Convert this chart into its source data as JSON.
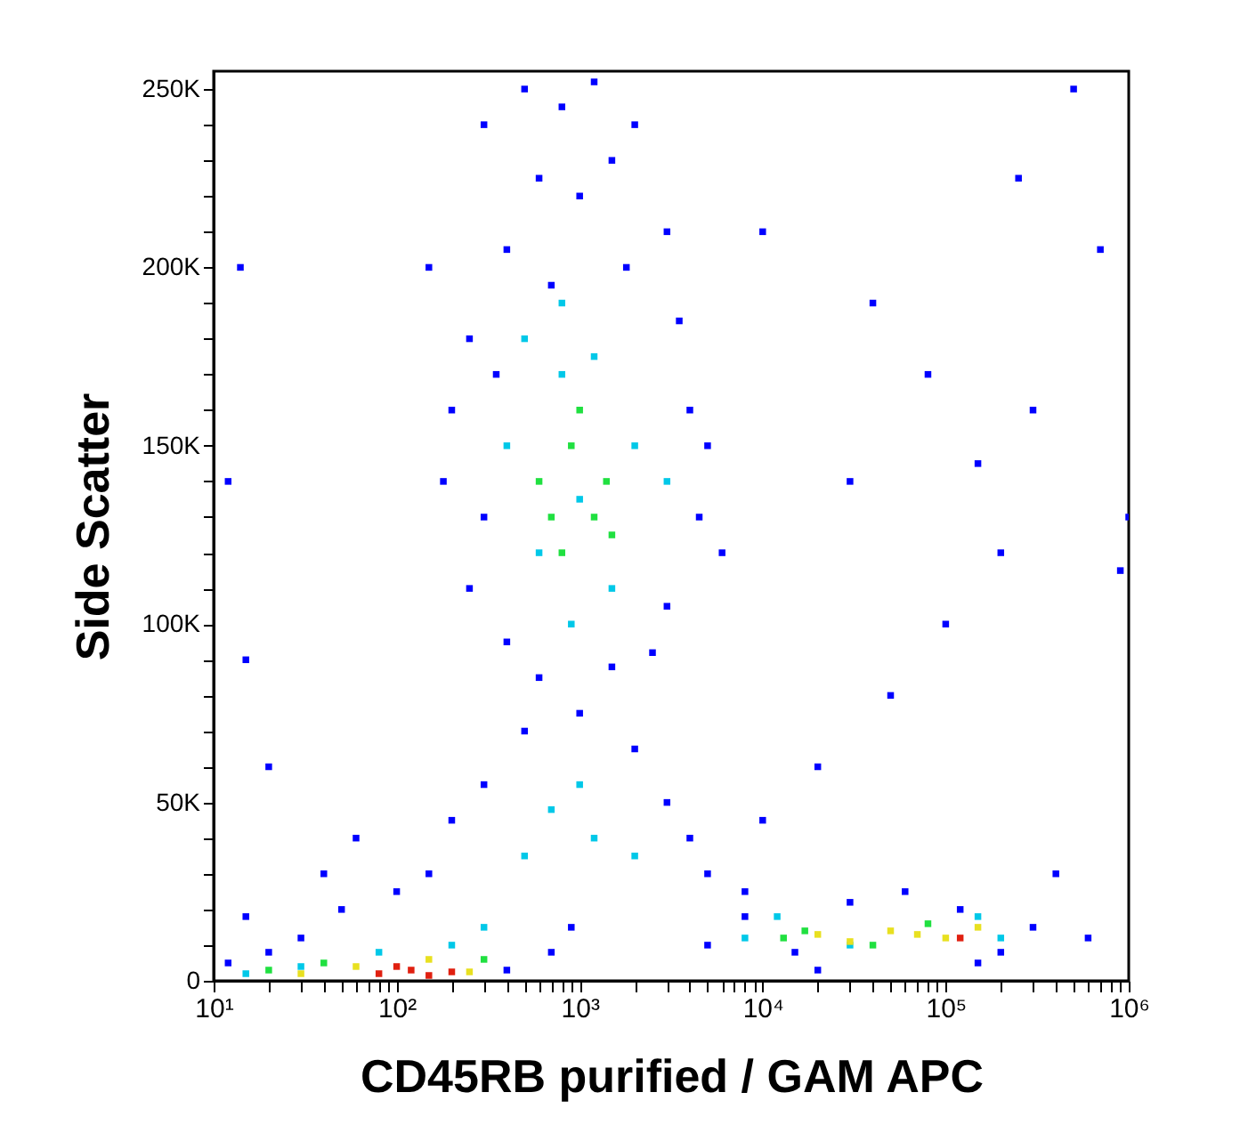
{
  "chart_data": {
    "type": "scatter",
    "xlabel": "CD45RB purified / GAM APC",
    "ylabel": "Side Scatter",
    "log": "x",
    "grid": false,
    "marker": "square",
    "xlim": [
      10,
      1000000
    ],
    "ylim": [
      0,
      255000
    ],
    "xticks": [
      {
        "value": 10,
        "label": "10¹"
      },
      {
        "value": 20,
        "label": null
      },
      {
        "value": 30,
        "label": null
      },
      {
        "value": 40,
        "label": null
      },
      {
        "value": 50,
        "label": null
      },
      {
        "value": 60,
        "label": null
      },
      {
        "value": 70,
        "label": null
      },
      {
        "value": 80,
        "label": null
      },
      {
        "value": 90,
        "label": null
      },
      {
        "value": 100,
        "label": "10²"
      },
      {
        "value": 200,
        "label": null
      },
      {
        "value": 300,
        "label": null
      },
      {
        "value": 400,
        "label": null
      },
      {
        "value": 500,
        "label": null
      },
      {
        "value": 600,
        "label": null
      },
      {
        "value": 700,
        "label": null
      },
      {
        "value": 800,
        "label": null
      },
      {
        "value": 900,
        "label": null
      },
      {
        "value": 1000,
        "label": "10³"
      },
      {
        "value": 2000,
        "label": null
      },
      {
        "value": 3000,
        "label": null
      },
      {
        "value": 4000,
        "label": null
      },
      {
        "value": 5000,
        "label": null
      },
      {
        "value": 6000,
        "label": null
      },
      {
        "value": 7000,
        "label": null
      },
      {
        "value": 8000,
        "label": null
      },
      {
        "value": 9000,
        "label": null
      },
      {
        "value": 10000,
        "label": "10⁴"
      },
      {
        "value": 20000,
        "label": null
      },
      {
        "value": 30000,
        "label": null
      },
      {
        "value": 40000,
        "label": null
      },
      {
        "value": 50000,
        "label": null
      },
      {
        "value": 60000,
        "label": null
      },
      {
        "value": 70000,
        "label": null
      },
      {
        "value": 80000,
        "label": null
      },
      {
        "value": 90000,
        "label": null
      },
      {
        "value": 100000,
        "label": "10⁵"
      },
      {
        "value": 200000,
        "label": null
      },
      {
        "value": 300000,
        "label": null
      },
      {
        "value": 400000,
        "label": null
      },
      {
        "value": 500000,
        "label": null
      },
      {
        "value": 600000,
        "label": null
      },
      {
        "value": 700000,
        "label": null
      },
      {
        "value": 800000,
        "label": null
      },
      {
        "value": 900000,
        "label": null
      },
      {
        "value": 1000000,
        "label": "10⁶"
      }
    ],
    "yticks": [
      {
        "value": 0,
        "label": "0"
      },
      {
        "value": 10000,
        "label": null
      },
      {
        "value": 20000,
        "label": null
      },
      {
        "value": 30000,
        "label": null
      },
      {
        "value": 40000,
        "label": null
      },
      {
        "value": 50000,
        "label": "50K"
      },
      {
        "value": 60000,
        "label": null
      },
      {
        "value": 70000,
        "label": null
      },
      {
        "value": 80000,
        "label": null
      },
      {
        "value": 90000,
        "label": null
      },
      {
        "value": 100000,
        "label": "100K"
      },
      {
        "value": 110000,
        "label": null
      },
      {
        "value": 120000,
        "label": null
      },
      {
        "value": 130000,
        "label": null
      },
      {
        "value": 140000,
        "label": null
      },
      {
        "value": 150000,
        "label": "150K"
      },
      {
        "value": 160000,
        "label": null
      },
      {
        "value": 170000,
        "label": null
      },
      {
        "value": 180000,
        "label": null
      },
      {
        "value": 190000,
        "label": null
      },
      {
        "value": 200000,
        "label": "200K"
      },
      {
        "value": 210000,
        "label": null
      },
      {
        "value": 220000,
        "label": null
      },
      {
        "value": 230000,
        "label": null
      },
      {
        "value": 240000,
        "label": null
      },
      {
        "value": 250000,
        "label": "250K"
      }
    ],
    "series": [
      {
        "color": "#0000ff",
        "x": [
          150,
          300,
          500,
          800,
          1200,
          2000,
          600,
          1000,
          1500,
          3000,
          400,
          250,
          700,
          1800,
          3500,
          200,
          350,
          4000,
          5000,
          180,
          300,
          4500,
          250,
          3000,
          400,
          600,
          1500,
          2500,
          500,
          1000,
          2000,
          300,
          3000,
          4000,
          200,
          150,
          5000,
          8000,
          100,
          50,
          30,
          20,
          12,
          15,
          40,
          60,
          20,
          15,
          12,
          14,
          8000,
          15000,
          30000,
          60000,
          120000,
          200000,
          300000,
          400000,
          600000,
          10000,
          20000,
          50000,
          100000,
          200000,
          150000,
          300000,
          80000,
          40000,
          10000,
          250000,
          500000,
          700000,
          900000,
          1000000,
          6000,
          30000,
          700,
          400,
          900,
          5000,
          20000,
          150000
        ],
        "values": [
          200000,
          240000,
          250000,
          245000,
          252000,
          240000,
          225000,
          220000,
          230000,
          210000,
          205000,
          180000,
          195000,
          200000,
          185000,
          160000,
          170000,
          160000,
          150000,
          140000,
          130000,
          130000,
          110000,
          105000,
          95000,
          85000,
          88000,
          92000,
          70000,
          75000,
          65000,
          55000,
          50000,
          40000,
          45000,
          30000,
          30000,
          25000,
          25000,
          20000,
          12000,
          8000,
          5000,
          18000,
          30000,
          40000,
          60000,
          90000,
          140000,
          200000,
          18000,
          8000,
          22000,
          25000,
          20000,
          8000,
          15000,
          30000,
          12000,
          45000,
          60000,
          80000,
          100000,
          120000,
          145000,
          160000,
          170000,
          190000,
          210000,
          225000,
          250000,
          205000,
          115000,
          130000,
          120000,
          140000,
          8000,
          3000,
          15000,
          10000,
          3000,
          5000
        ]
      },
      {
        "color": "#00c8e8",
        "x": [
          500,
          800,
          1200,
          400,
          2000,
          600,
          1500,
          900,
          700,
          1200,
          2000,
          500,
          1000,
          300,
          200,
          8000,
          12000,
          30000,
          80,
          30,
          15,
          150000,
          200000,
          1000,
          3000,
          800
        ],
        "values": [
          180000,
          170000,
          175000,
          150000,
          150000,
          120000,
          110000,
          100000,
          48000,
          40000,
          35000,
          35000,
          55000,
          15000,
          10000,
          12000,
          18000,
          10000,
          8000,
          4000,
          2000,
          18000,
          12000,
          135000,
          140000,
          190000
        ]
      },
      {
        "color": "#20e040",
        "x": [
          600,
          900,
          1200,
          800,
          1000,
          700,
          1400,
          1500,
          20,
          40,
          300,
          17000,
          40000,
          80000,
          13000
        ],
        "values": [
          140000,
          150000,
          130000,
          120000,
          160000,
          130000,
          140000,
          125000,
          3000,
          5000,
          6000,
          14000,
          10000,
          16000,
          12000
        ]
      },
      {
        "color": "#e8e020",
        "x": [
          30,
          60,
          150,
          250,
          20000,
          50000,
          100000,
          150000,
          30000,
          70000
        ],
        "values": [
          2000,
          4000,
          6000,
          2500,
          13000,
          14000,
          12000,
          15000,
          11000,
          13000
        ]
      },
      {
        "color": "#e02010",
        "x": [
          80,
          120,
          150,
          200,
          100,
          120000
        ],
        "values": [
          2000,
          3000,
          1500,
          2500,
          4000,
          12000
        ]
      }
    ]
  }
}
